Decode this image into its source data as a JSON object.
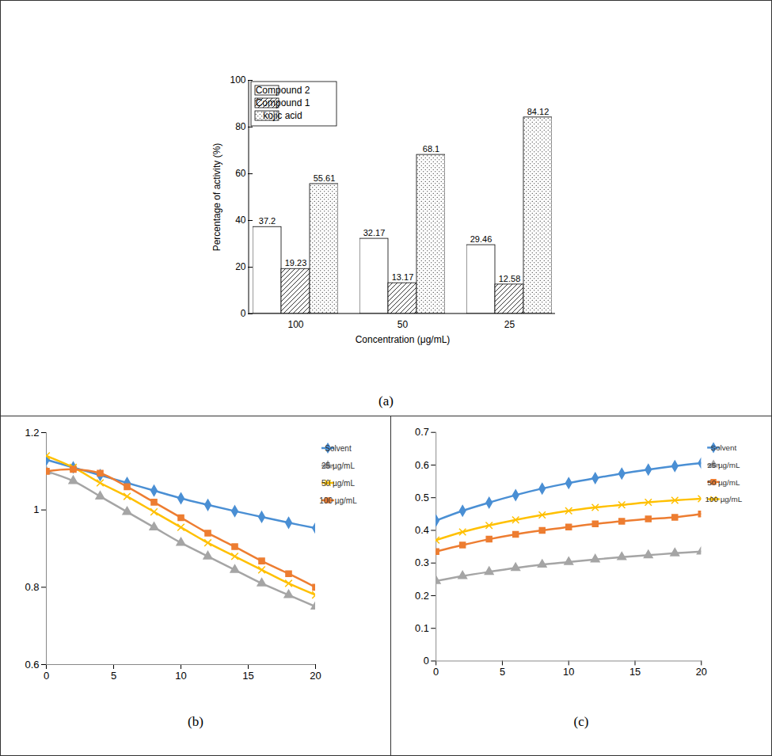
{
  "chart_data": [
    {
      "type": "bar",
      "title": "(a)",
      "xlabel": "Concentration (μg/mL)",
      "ylabel": "Percentage of activity (%)",
      "categories": [
        "100",
        "50",
        "25"
      ],
      "series": [
        {
          "name": "Compound 2",
          "color": "#ffffff",
          "values": [
            37.2,
            32.17,
            29.46
          ]
        },
        {
          "name": "Compound 1",
          "color": "#ffffff",
          "values": [
            19.23,
            13.17,
            12.58
          ]
        },
        {
          "name": "kojic acid",
          "color": "#ffffff",
          "values": [
            55.61,
            68.1,
            84.12
          ]
        }
      ],
      "ylim": [
        0,
        100
      ],
      "yticks": [
        0,
        20,
        40,
        60,
        80,
        100
      ],
      "data_labels": true,
      "legend": "top-left",
      "grid": false
    },
    {
      "type": "line",
      "title": "(b)",
      "x": [
        0,
        2,
        4,
        6,
        8,
        10,
        12,
        14,
        16,
        18,
        20
      ],
      "series": [
        {
          "name": "Solvent",
          "color": "#4a8fd4",
          "marker": "diamond",
          "values": [
            1.13,
            1.11,
            1.09,
            1.07,
            1.05,
            1.03,
            1.013,
            0.997,
            0.982,
            0.967,
            0.953
          ]
        },
        {
          "name": "25 µg/mL",
          "color": "#a5a5a5",
          "marker": "triangle",
          "values": [
            1.1,
            1.075,
            1.035,
            0.995,
            0.955,
            0.915,
            0.88,
            0.845,
            0.81,
            0.78,
            0.75
          ]
        },
        {
          "name": "50 µg/mL",
          "color": "#ffc000",
          "marker": "x",
          "values": [
            1.14,
            1.11,
            1.07,
            1.035,
            0.995,
            0.955,
            0.915,
            0.88,
            0.845,
            0.81,
            0.78
          ]
        },
        {
          "name": "100 µg/mL",
          "color": "#ed7d31",
          "marker": "square",
          "values": [
            1.1,
            1.105,
            1.095,
            1.06,
            1.02,
            0.98,
            0.94,
            0.905,
            0.868,
            0.835,
            0.8
          ]
        }
      ],
      "xlim": [
        0,
        20
      ],
      "xticks": [
        0,
        5,
        10,
        15,
        20
      ],
      "ylim": [
        0.6,
        1.2
      ],
      "yticks": [
        0.6,
        0.8,
        1,
        1.2
      ],
      "legend": "right",
      "grid": false
    },
    {
      "type": "line",
      "title": "(c)",
      "x": [
        0,
        2,
        4,
        6,
        8,
        10,
        12,
        14,
        16,
        18,
        20
      ],
      "series": [
        {
          "name": "Solvent",
          "color": "#4a8fd4",
          "marker": "diamond",
          "values": [
            0.43,
            0.46,
            0.485,
            0.508,
            0.528,
            0.545,
            0.56,
            0.574,
            0.586,
            0.597,
            0.606
          ]
        },
        {
          "name": "25 µg/mL",
          "color": "#a5a5a5",
          "marker": "triangle",
          "values": [
            0.245,
            0.26,
            0.273,
            0.285,
            0.295,
            0.303,
            0.311,
            0.318,
            0.324,
            0.33,
            0.335
          ]
        },
        {
          "name": "50 µg/mL",
          "color": "#ed7d31",
          "marker": "square",
          "values": [
            0.335,
            0.355,
            0.373,
            0.388,
            0.4,
            0.41,
            0.42,
            0.428,
            0.435,
            0.44,
            0.45
          ]
        },
        {
          "name": "100 µg/mL",
          "color": "#ffc000",
          "marker": "x",
          "values": [
            0.37,
            0.395,
            0.415,
            0.432,
            0.447,
            0.46,
            0.47,
            0.478,
            0.486,
            0.492,
            0.497
          ]
        }
      ],
      "xlim": [
        0,
        20
      ],
      "xticks": [
        0,
        5,
        10,
        15,
        20
      ],
      "ylim": [
        0,
        0.7
      ],
      "yticks": [
        0,
        0.1,
        0.2,
        0.3,
        0.4,
        0.5,
        0.6,
        0.7
      ],
      "legend": "right",
      "grid": false
    }
  ]
}
